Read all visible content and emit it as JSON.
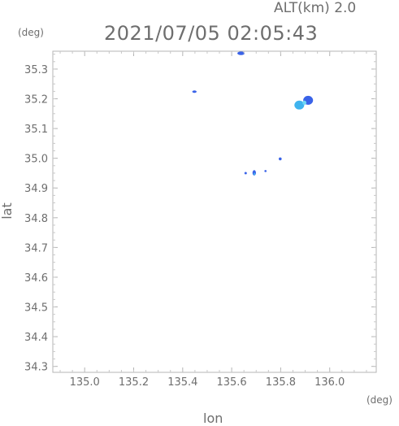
{
  "header": {
    "alt_label": "ALT(km) 2.0",
    "timestamp": "2021/07/05 02:05:43"
  },
  "chart_data": {
    "type": "heatmap",
    "title": "2021/07/05 02:05:43",
    "subtitle": "ALT(km) 2.0",
    "xlabel": "lon",
    "ylabel": "lat",
    "x_unit": "(deg)",
    "y_unit": "(deg)",
    "xlim": [
      134.87,
      136.19
    ],
    "ylim": [
      34.28,
      35.36
    ],
    "x_ticks": [
      135.0,
      135.2,
      135.4,
      135.6,
      135.8,
      136.0
    ],
    "x_tick_labels": [
      "135.0",
      "135.2",
      "135.4",
      "135.6",
      "135.8",
      "136.0"
    ],
    "y_ticks": [
      34.3,
      34.4,
      34.5,
      34.6,
      34.7,
      34.8,
      34.9,
      35.0,
      35.1,
      35.2,
      35.3
    ],
    "y_tick_labels": [
      "34.3",
      "34.4",
      "34.5",
      "34.6",
      "34.7",
      "34.8",
      "34.9",
      "35.0",
      "35.1",
      "35.2",
      "35.3"
    ],
    "grid": false,
    "cells": [
      {
        "lon": 135.638,
        "lat": 35.353,
        "lon_w": 0.03,
        "lat_h": 0.012,
        "color": "#3a63e8"
      },
      {
        "lon": 135.448,
        "lat": 35.224,
        "lon_w": 0.018,
        "lat_h": 0.008,
        "color": "#3a63e8"
      },
      {
        "lon": 135.876,
        "lat": 35.179,
        "lon_w": 0.04,
        "lat_h": 0.03,
        "color": "#3fb3ee"
      },
      {
        "lon": 135.912,
        "lat": 35.195,
        "lon_w": 0.04,
        "lat_h": 0.03,
        "color": "#3a63e8"
      },
      {
        "lon": 135.897,
        "lat": 35.187,
        "lon_w": 0.016,
        "lat_h": 0.014,
        "color": "#6fd6f5"
      },
      {
        "lon": 135.798,
        "lat": 34.998,
        "lon_w": 0.012,
        "lat_h": 0.01,
        "color": "#3a63e8"
      },
      {
        "lon": 135.657,
        "lat": 34.95,
        "lon_w": 0.01,
        "lat_h": 0.008,
        "color": "#3a63e8"
      },
      {
        "lon": 135.692,
        "lat": 34.951,
        "lon_w": 0.014,
        "lat_h": 0.018,
        "color": "#3a63e8"
      },
      {
        "lon": 135.693,
        "lat": 34.947,
        "lon_w": 0.007,
        "lat_h": 0.008,
        "color": "#3fb3ee"
      },
      {
        "lon": 135.738,
        "lat": 34.957,
        "lon_w": 0.009,
        "lat_h": 0.007,
        "color": "#3a63e8"
      }
    ]
  }
}
